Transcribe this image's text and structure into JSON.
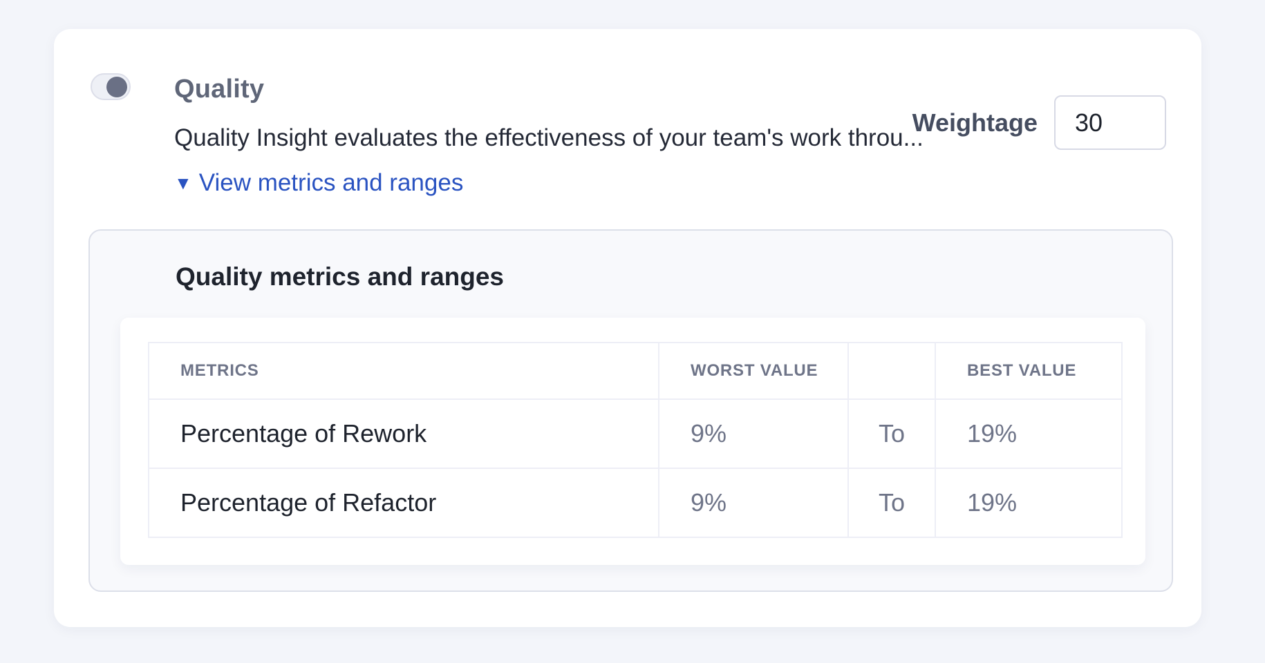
{
  "colors": {
    "page_background": "#f3f5fa",
    "card_background": "#ffffff",
    "panel_background": "#f8f9fc",
    "link_blue": "#2a53c1",
    "toggle_knob": "#6a7085",
    "muted_slate": "#6e7488",
    "dark_text": "#1d222c"
  },
  "section": {
    "toggle": {
      "state": "on"
    },
    "title": "Quality",
    "description": "Quality Insight evaluates the effectiveness of your team's work throu...",
    "weightage": {
      "label": "Weightage",
      "value": "30"
    },
    "details_link": {
      "icon": "▼",
      "label": "View metrics and ranges"
    }
  },
  "metrics_panel": {
    "title": "Quality metrics and ranges",
    "table": {
      "headers": {
        "metrics": "METRICS",
        "worst": "WORST VALUE",
        "separator": "",
        "best": "BEST VALUE"
      },
      "rows": [
        {
          "metric": "Percentage of Rework",
          "worst": "9%",
          "separator": "To",
          "best": "19%"
        },
        {
          "metric": "Percentage of Refactor",
          "worst": "9%",
          "separator": "To",
          "best": "19%"
        }
      ]
    }
  }
}
